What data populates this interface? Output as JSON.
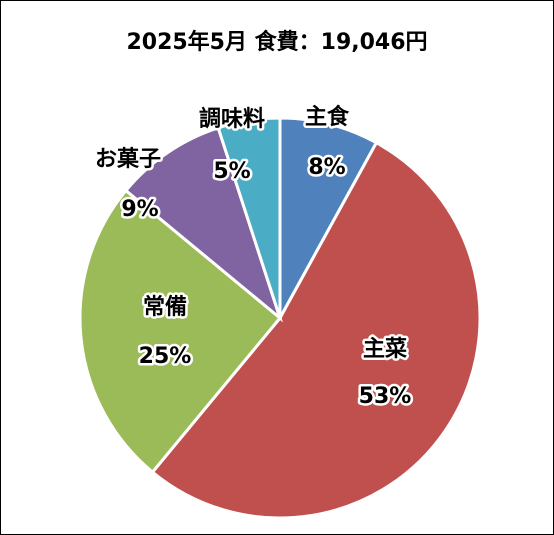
{
  "chart_data": {
    "type": "pie",
    "title": "2025年5月 食費：19,046円",
    "categories": [
      "主食",
      "主菜",
      "常備",
      "お菓子",
      "調味料"
    ],
    "values": [
      8,
      53,
      25,
      9,
      5
    ],
    "value_labels": [
      "8%",
      "53%",
      "25%",
      "9%",
      "5%"
    ],
    "colors": [
      "#4f81bd",
      "#c0504d",
      "#9bbb59",
      "#8064a2",
      "#4bacc6"
    ]
  }
}
